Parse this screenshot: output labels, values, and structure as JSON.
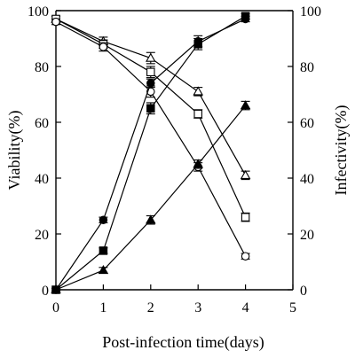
{
  "chart_data": {
    "type": "line",
    "xlabel": "Post-infection time(days)",
    "ylabel": "Viability(%)",
    "y2label": "Infectivity(%)",
    "xlim": [
      0,
      5
    ],
    "ylim": [
      0,
      100
    ],
    "y2lim": [
      0,
      100
    ],
    "xticks": [
      "0",
      "1",
      "2",
      "3",
      "4",
      "5"
    ],
    "yticks": [
      "0",
      "20",
      "40",
      "60",
      "80",
      "100"
    ],
    "y2ticks": [
      "0",
      "20",
      "40",
      "60",
      "80",
      "100"
    ],
    "grid": false,
    "legend": "none",
    "series": [
      {
        "marker": "open-triangle",
        "x": [
          0,
          1,
          2,
          3,
          4
        ],
        "y": [
          97,
          89,
          83,
          71,
          41
        ],
        "err": [
          1,
          1.5,
          2,
          1.5,
          1.5
        ]
      },
      {
        "marker": "open-square",
        "x": [
          0,
          1,
          2,
          3,
          4
        ],
        "y": [
          97,
          88,
          78,
          63,
          26
        ],
        "err": [
          1,
          1.5,
          2,
          1.5,
          1.5
        ]
      },
      {
        "marker": "open-circle",
        "x": [
          0,
          1,
          2,
          3,
          4
        ],
        "y": [
          96,
          87,
          71,
          44,
          12
        ],
        "err": [
          1,
          1.5,
          2,
          1.5,
          1
        ]
      },
      {
        "marker": "filled-circle",
        "x": [
          0,
          1,
          2,
          3,
          4
        ],
        "y": [
          0,
          25,
          74,
          89,
          97
        ],
        "err": [
          0.5,
          1,
          1.5,
          2,
          1
        ]
      },
      {
        "marker": "filled-square",
        "x": [
          0,
          1,
          2,
          3,
          4
        ],
        "y": [
          0,
          14,
          65,
          88,
          98
        ],
        "err": [
          0.5,
          1,
          2,
          2,
          1
        ]
      },
      {
        "marker": "filled-triangle",
        "x": [
          0,
          1,
          2,
          3,
          4
        ],
        "y": [
          0,
          7,
          25,
          45,
          66
        ],
        "err": [
          0.5,
          1,
          1.5,
          1.5,
          1.5
        ]
      }
    ]
  }
}
